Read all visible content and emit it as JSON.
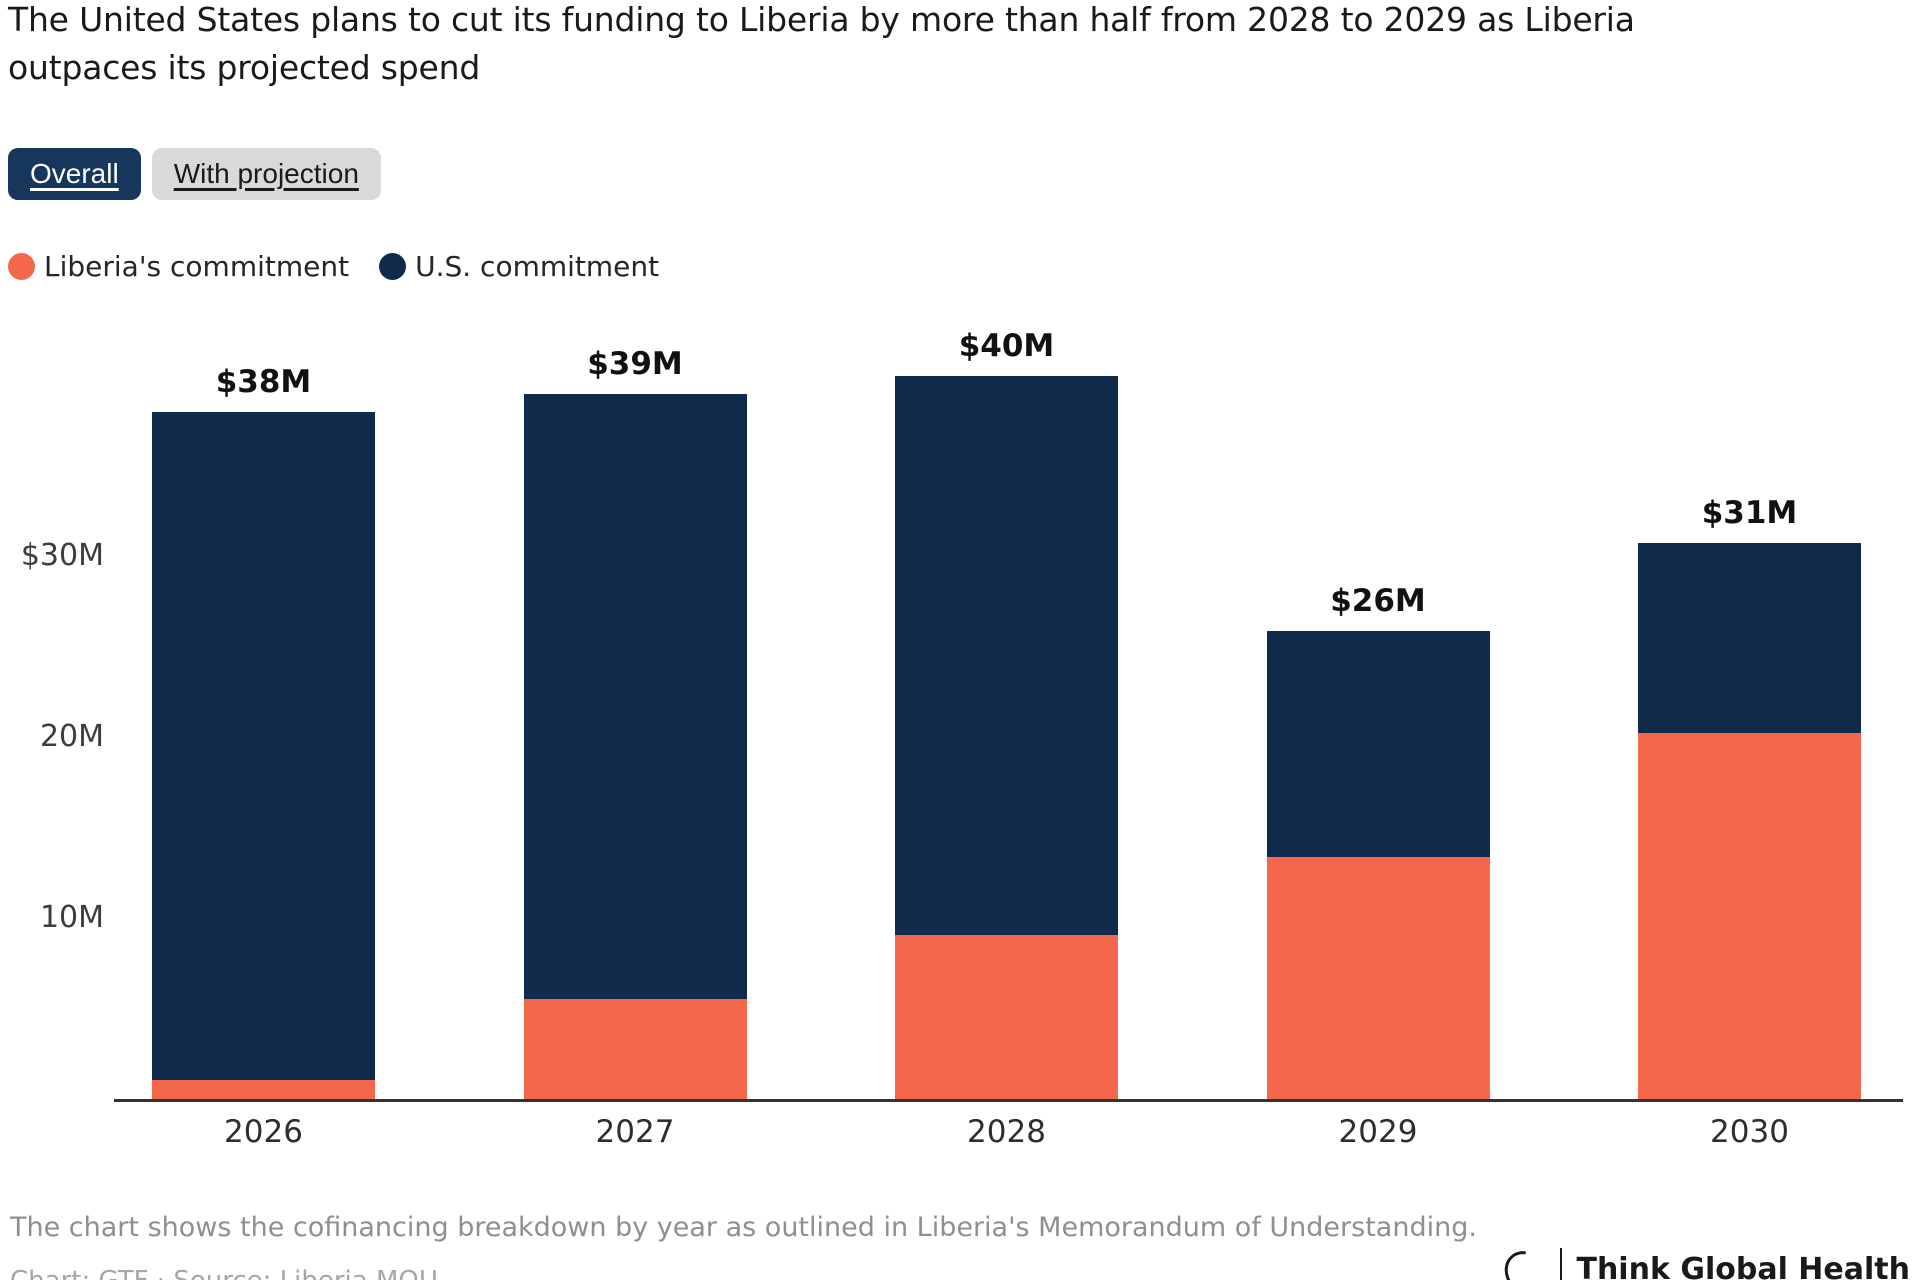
{
  "header": {
    "title_lines": [
      "The United States plans to cut its funding to Liberia by more than half from 2028 to 2029 as Liberia",
      "outpaces its projected spend"
    ]
  },
  "tabs": [
    {
      "label": "Overall",
      "active": true
    },
    {
      "label": "With projection",
      "active": false
    }
  ],
  "colors": {
    "orange": "#f4674a",
    "navy": "#0f2a4a",
    "tab_active_bg": "#17365c",
    "tab_inactive_bg": "#d9d9d9",
    "axis": "#333333"
  },
  "chart_data": {
    "type": "bar",
    "stacked": true,
    "title": "The United States plans to cut its funding to Liberia by more than half from 2028 to 2029 as Liberia outpaces its projected spend",
    "categories": [
      "2026",
      "2027",
      "2028",
      "2029",
      "2030"
    ],
    "series": [
      {
        "name": "Liberia's commitment",
        "color": "#f4674a",
        "values": [
          1.1,
          5.6,
          9.1,
          13.4,
          20.3
        ]
      },
      {
        "name": "U.S. commitment",
        "color": "#0f2a4a",
        "values": [
          36.9,
          33.4,
          30.9,
          12.5,
          10.5
        ]
      }
    ],
    "total_labels": [
      "$38M",
      "$39M",
      "$40M",
      "$26M",
      "$31M"
    ],
    "y_ticks": [
      {
        "value": 10,
        "label": "10M"
      },
      {
        "value": 20,
        "label": "20M"
      },
      {
        "value": 30,
        "label": "$30M"
      }
    ],
    "ylim": [
      0,
      42
    ],
    "unit": "USD millions",
    "grid": false,
    "legend_position": "top-left",
    "xlabel": "",
    "ylabel": ""
  },
  "footer": {
    "note": "The chart shows the cofinancing breakdown by year as outlined in Liberia's Memorandum of Understanding.",
    "credit_partial": "Chart: GTF  ·  Source: Liberia MOU",
    "logo_text": "Think Global Health"
  }
}
